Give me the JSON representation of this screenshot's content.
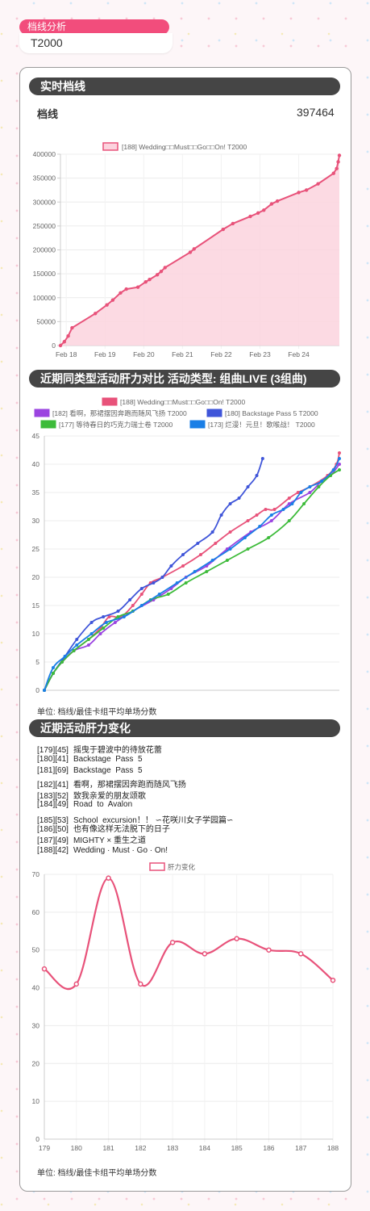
{
  "header": {
    "tag_label": "档线分析",
    "value": "T2000"
  },
  "section1": {
    "title": "实时档线",
    "label": "档线",
    "value": "397464"
  },
  "section2": {
    "title": "近期同类型活动肝力对比 活动类型: 组曲LIVE (3组曲)",
    "unit": "单位: 档线/最佳卡组平均单场分数"
  },
  "section3": {
    "title": "近期活动肝力变化",
    "unit": "单位: 档线/最佳卡组平均单场分数",
    "events": [
      {
        "id": "[179]",
        "value": "[45]",
        "name": "摇曳于碧波中的待放花蕾"
      },
      {
        "id": "[180]",
        "value": "[41]",
        "name": "Backstage  Pass  5"
      },
      {
        "id": "[181]",
        "value": "[69]",
        "name": "Backstage  Pass  5"
      },
      {
        "id": "[182]",
        "value": "[41]",
        "name": "看啊，那裙摆因奔跑而随风飞扬"
      },
      {
        "id": "[183]",
        "value": "[52]",
        "name": "致我亲爱的朋友颂歌"
      },
      {
        "id": "[184]",
        "value": "[49]",
        "name": "Road  to  Avalon"
      },
      {
        "id": "[185]",
        "value": "[53]",
        "name": "School  excursion！！ ∽花咲川女子学园篇∽"
      },
      {
        "id": "[186]",
        "value": "[50]",
        "name": "也有像这样无法脱下的日子"
      },
      {
        "id": "[187]",
        "value": "[49]",
        "name": "MIGHTY × 重生之道"
      },
      {
        "id": "[188]",
        "value": "[42]",
        "name": "Wedding · Must · Go · On!"
      }
    ]
  },
  "chart_data": [
    {
      "type": "area",
      "legend": [
        "[188]  Wedding\u0000\u0000Must\u0000\u0000Go\u0000\u0000On!   T2000"
      ],
      "legend_text": "[188]  Wedding□□Must□□Go□□On!   T2000",
      "color": "#e8527a",
      "fill": "#fcd3de",
      "x_ticks": [
        "Feb 18",
        "Feb 19",
        "Feb 20",
        "Feb 21",
        "Feb 22",
        "Feb 23",
        "Feb 24"
      ],
      "ylim": [
        0,
        400000
      ],
      "y_ticks": [
        0,
        50000,
        100000,
        150000,
        200000,
        250000,
        300000,
        350000,
        400000
      ],
      "x_days_range": [
        17.85,
        25.05
      ],
      "points": [
        [
          17.85,
          0
        ],
        [
          17.95,
          8000
        ],
        [
          18.05,
          20000
        ],
        [
          18.15,
          37000
        ],
        [
          18.75,
          67000
        ],
        [
          19.05,
          85000
        ],
        [
          19.2,
          95000
        ],
        [
          19.4,
          110000
        ],
        [
          19.55,
          118000
        ],
        [
          19.85,
          122000
        ],
        [
          20.05,
          133000
        ],
        [
          20.15,
          138000
        ],
        [
          20.35,
          148000
        ],
        [
          20.45,
          155000
        ],
        [
          20.55,
          163000
        ],
        [
          21.2,
          195000
        ],
        [
          21.3,
          202000
        ],
        [
          22.05,
          243000
        ],
        [
          22.3,
          255000
        ],
        [
          22.75,
          270000
        ],
        [
          22.95,
          277000
        ],
        [
          23.1,
          283000
        ],
        [
          23.3,
          296000
        ],
        [
          23.45,
          302000
        ],
        [
          24.0,
          320000
        ],
        [
          24.2,
          325000
        ],
        [
          24.5,
          338000
        ],
        [
          24.9,
          360000
        ],
        [
          24.98,
          370000
        ],
        [
          25.02,
          384000
        ],
        [
          25.05,
          397464
        ]
      ]
    },
    {
      "type": "line",
      "ylim": [
        0,
        45
      ],
      "y_ticks": [
        0,
        5,
        10,
        15,
        20,
        25,
        30,
        35,
        40,
        45
      ],
      "legend_rows": [
        [
          "[188]  Wedding□□Must□□Go□□On!   T2000"
        ],
        [
          "[182]  看啊，那裙摆因奔跑而随风飞扬  T2000",
          "[180]  Backstage  Pass  5  T2000"
        ],
        [
          "[177]  等待春日的巧克力瑞士卷  T2000",
          "[173]  烂漫！元旦！歌喉战！  T2000"
        ]
      ],
      "series": [
        {
          "name": "[188]  Wedding□□Must□□Go□□On!   T2000",
          "color": "#e8527a",
          "points": [
            [
              0,
              0
            ],
            [
              0.03,
              3
            ],
            [
              0.06,
              5
            ],
            [
              0.1,
              7
            ],
            [
              0.15,
              9
            ],
            [
              0.19,
              11
            ],
            [
              0.22,
              13
            ],
            [
              0.26,
              13
            ],
            [
              0.3,
              15
            ],
            [
              0.33,
              17
            ],
            [
              0.36,
              19
            ],
            [
              0.4,
              20
            ],
            [
              0.47,
              22
            ],
            [
              0.53,
              24
            ],
            [
              0.58,
              26
            ],
            [
              0.63,
              28
            ],
            [
              0.69,
              30
            ],
            [
              0.72,
              31
            ],
            [
              0.75,
              32
            ],
            [
              0.78,
              32
            ],
            [
              0.83,
              34
            ],
            [
              0.86,
              35
            ],
            [
              0.9,
              36
            ],
            [
              0.96,
              38
            ],
            [
              0.99,
              40
            ],
            [
              1.0,
              42
            ]
          ]
        },
        {
          "name": "[182]  看啊，那裙摆因奔跑而随风飞扬  T2000",
          "color": "#9b44e0",
          "points": [
            [
              0,
              0
            ],
            [
              0.03,
              3
            ],
            [
              0.06,
              5
            ],
            [
              0.1,
              7
            ],
            [
              0.15,
              8
            ],
            [
              0.19,
              10
            ],
            [
              0.24,
              12
            ],
            [
              0.3,
              14
            ],
            [
              0.37,
              16
            ],
            [
              0.43,
              18
            ],
            [
              0.48,
              20
            ],
            [
              0.55,
              22
            ],
            [
              0.62,
              25
            ],
            [
              0.7,
              28
            ],
            [
              0.77,
              30
            ],
            [
              0.83,
              33
            ],
            [
              0.9,
              35
            ],
            [
              0.94,
              37
            ],
            [
              0.97,
              38
            ],
            [
              1.0,
              40
            ]
          ]
        },
        {
          "name": "[180]  Backstage  Pass  5  T2000",
          "color": "#3f55d9",
          "points": [
            [
              0,
              0
            ],
            [
              0.03,
              3
            ],
            [
              0.07,
              6
            ],
            [
              0.11,
              9
            ],
            [
              0.16,
              12
            ],
            [
              0.2,
              13
            ],
            [
              0.25,
              14
            ],
            [
              0.29,
              16
            ],
            [
              0.33,
              18
            ],
            [
              0.37,
              19
            ],
            [
              0.4,
              20
            ],
            [
              0.43,
              22
            ],
            [
              0.47,
              24
            ],
            [
              0.52,
              26
            ],
            [
              0.57,
              28
            ],
            [
              0.6,
              31
            ],
            [
              0.63,
              33
            ],
            [
              0.66,
              34
            ],
            [
              0.69,
              36
            ],
            [
              0.72,
              38
            ],
            [
              0.74,
              41
            ]
          ]
        },
        {
          "name": "[177]  等待春日的巧克力瑞士卷  T2000",
          "color": "#3dbb3a",
          "points": [
            [
              0,
              0
            ],
            [
              0.03,
              3
            ],
            [
              0.06,
              5
            ],
            [
              0.1,
              7
            ],
            [
              0.15,
              9
            ],
            [
              0.2,
              11
            ],
            [
              0.25,
              13
            ],
            [
              0.3,
              14
            ],
            [
              0.36,
              16
            ],
            [
              0.42,
              17
            ],
            [
              0.48,
              19
            ],
            [
              0.55,
              21
            ],
            [
              0.62,
              23
            ],
            [
              0.69,
              25
            ],
            [
              0.76,
              27
            ],
            [
              0.83,
              30
            ],
            [
              0.88,
              33
            ],
            [
              0.93,
              36
            ],
            [
              0.97,
              38
            ],
            [
              1.0,
              39
            ]
          ]
        },
        {
          "name": "[173]  烂漫！元旦！歌喉战！  T2000",
          "color": "#1a7fe6",
          "points": [
            [
              0,
              0
            ],
            [
              0.03,
              4
            ],
            [
              0.07,
              6
            ],
            [
              0.11,
              8
            ],
            [
              0.16,
              10
            ],
            [
              0.21,
              12
            ],
            [
              0.27,
              13
            ],
            [
              0.33,
              15
            ],
            [
              0.39,
              17
            ],
            [
              0.45,
              19
            ],
            [
              0.51,
              21
            ],
            [
              0.57,
              23
            ],
            [
              0.63,
              25
            ],
            [
              0.68,
              27
            ],
            [
              0.73,
              29
            ],
            [
              0.77,
              31
            ],
            [
              0.81,
              32
            ],
            [
              0.84,
              33
            ],
            [
              0.87,
              35
            ],
            [
              0.9,
              36
            ],
            [
              0.94,
              37
            ],
            [
              0.98,
              39
            ],
            [
              1.0,
              41
            ]
          ]
        }
      ]
    },
    {
      "type": "line",
      "legend": [
        "肝力变化"
      ],
      "color": "#e8527a",
      "categories": [
        "179",
        "180",
        "181",
        "182",
        "183",
        "184",
        "185",
        "186",
        "187",
        "188"
      ],
      "values": [
        45,
        41,
        69,
        41,
        52,
        49,
        53,
        50,
        49,
        42
      ],
      "ylim": [
        0,
        70
      ],
      "y_ticks": [
        0,
        10,
        20,
        30,
        40,
        50,
        60,
        70
      ]
    }
  ]
}
